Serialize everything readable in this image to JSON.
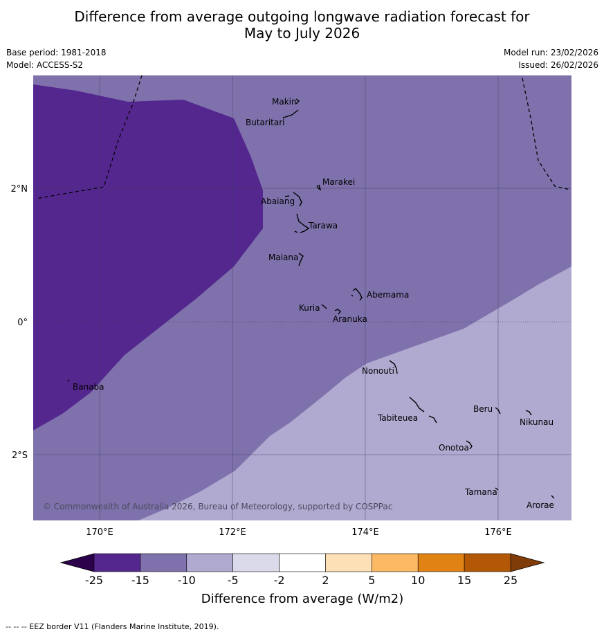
{
  "header": {
    "title_line1": "Difference from average outgoing longwave radiation forecast for",
    "title_line2": "May to July 2026",
    "base_period": "Base period: 1981-2018",
    "model": "Model: ACCESS-S2",
    "model_run": "Model run: 23/02/2026",
    "issued": "Issued: 26/02/2026"
  },
  "map": {
    "lat_labels": [
      "2°N",
      "0°",
      "2°S"
    ],
    "lon_labels": [
      "170°E",
      "172°E",
      "174°E",
      "176°E"
    ],
    "copyright": "© Commonwealth of Australia 2026, Bureau of Meteorology, supported by COSPPac",
    "places": [
      "Makin",
      "Butaritari",
      "Marakei",
      "Abaiang",
      "Tarawa",
      "Maiana",
      "Abemama",
      "Kuria",
      "Aranuka",
      "Nonouti",
      "Banaba",
      "Beru",
      "Nikunau",
      "Tabiteuea",
      "Onotoa",
      "Tamana",
      "Arorae"
    ],
    "region_colors": {
      "band_-25_-15": "#54278f",
      "band_-15_-10": "#7f71ab",
      "band_-10_-5": "#b0a9d0"
    }
  },
  "colorbar": {
    "ticks": [
      "-25",
      "-15",
      "-10",
      "-5",
      "-2",
      "2",
      "5",
      "10",
      "15",
      "25"
    ],
    "colors": [
      "#54278f",
      "#7f71ab",
      "#b0a9d0",
      "#dadaeb",
      "#ffffff",
      "#fee0b6",
      "#fdb863",
      "#e08214",
      "#b35806"
    ],
    "under_color": "#2d004b",
    "over_color": "#7f3b08",
    "label": "Difference from average (W/m2)"
  },
  "footer": {
    "legend": "--  --  -- EEZ border V11 (Flanders Marine Institute, 2019)."
  }
}
